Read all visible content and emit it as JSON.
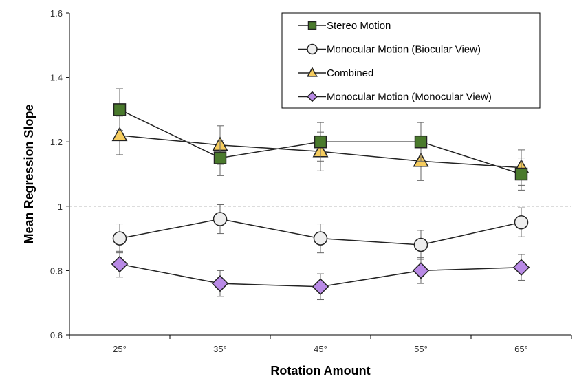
{
  "chart_data": {
    "type": "line",
    "xlabel": "Rotation Amount",
    "ylabel": "Mean Regression Slope",
    "categories": [
      "25°",
      "35°",
      "45°",
      "55°",
      "65°"
    ],
    "ylim": [
      0.6,
      1.6
    ],
    "yticks": [
      "0.6",
      "0.8",
      "1",
      "1.2",
      "1.4",
      "1.6"
    ],
    "reference_line": {
      "y": 1.0,
      "style": "dashed"
    },
    "grid": false,
    "legend_position": "top-right",
    "series": [
      {
        "name": "Stereo Motion",
        "marker": "square",
        "color": "#4a7a2c",
        "values": [
          1.3,
          1.15,
          1.2,
          1.2,
          1.1
        ],
        "error": [
          0.065,
          0.055,
          0.06,
          0.06,
          0.05
        ]
      },
      {
        "name": "Monocular Motion (Biocular View)",
        "marker": "circle",
        "color": "#eeeeee",
        "values": [
          0.9,
          0.96,
          0.9,
          0.88,
          0.95
        ],
        "error": [
          0.045,
          0.045,
          0.045,
          0.045,
          0.045
        ]
      },
      {
        "name": "Combined",
        "marker": "triangle",
        "color": "#f5cc5e",
        "values": [
          1.22,
          1.19,
          1.17,
          1.14,
          1.12
        ],
        "error": [
          0.06,
          0.06,
          0.06,
          0.06,
          0.055
        ]
      },
      {
        "name": "Monocular Motion (Monocular View)",
        "marker": "diamond",
        "color": "#b98ae6",
        "values": [
          0.82,
          0.76,
          0.75,
          0.8,
          0.81
        ],
        "error": [
          0.04,
          0.04,
          0.04,
          0.04,
          0.04
        ]
      }
    ]
  }
}
